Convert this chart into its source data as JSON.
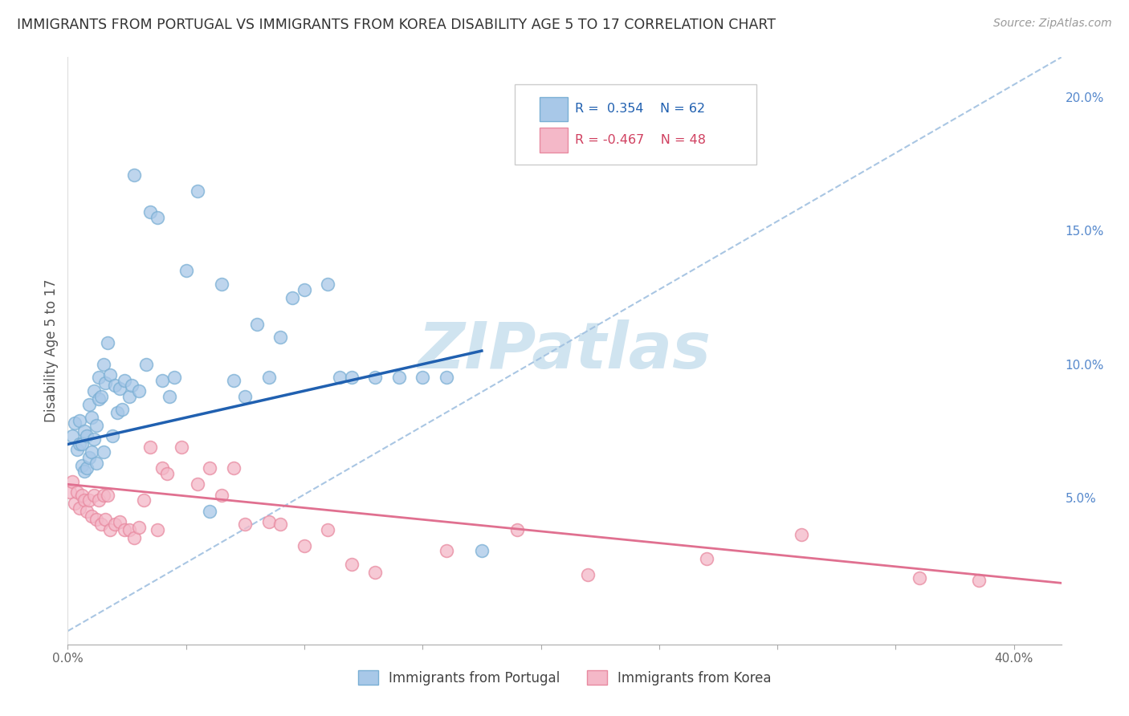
{
  "title": "IMMIGRANTS FROM PORTUGAL VS IMMIGRANTS FROM KOREA DISABILITY AGE 5 TO 17 CORRELATION CHART",
  "source": "Source: ZipAtlas.com",
  "ylabel": "Disability Age 5 to 17",
  "xlim": [
    0.0,
    0.42
  ],
  "ylim": [
    -0.005,
    0.215
  ],
  "portugal_color": "#a8c8e8",
  "portugal_edge_color": "#7aafd4",
  "korea_color": "#f4b8c8",
  "korea_edge_color": "#e88aa0",
  "portugal_line_color": "#2060b0",
  "korea_line_color": "#e07090",
  "dashed_line_color": "#a0c0e0",
  "legend_text_color_portugal": "#2060b0",
  "legend_text_color_korea": "#d04060",
  "watermark_color": "#d0e4f0",
  "portugal_x": [
    0.002,
    0.003,
    0.004,
    0.005,
    0.005,
    0.006,
    0.006,
    0.007,
    0.007,
    0.008,
    0.008,
    0.009,
    0.009,
    0.01,
    0.01,
    0.011,
    0.011,
    0.012,
    0.012,
    0.013,
    0.013,
    0.014,
    0.015,
    0.015,
    0.016,
    0.017,
    0.018,
    0.019,
    0.02,
    0.021,
    0.022,
    0.023,
    0.024,
    0.026,
    0.027,
    0.028,
    0.03,
    0.033,
    0.035,
    0.038,
    0.04,
    0.043,
    0.045,
    0.05,
    0.055,
    0.06,
    0.065,
    0.07,
    0.075,
    0.08,
    0.085,
    0.09,
    0.095,
    0.1,
    0.11,
    0.115,
    0.12,
    0.13,
    0.14,
    0.15,
    0.16,
    0.175
  ],
  "portugal_y": [
    0.073,
    0.078,
    0.068,
    0.07,
    0.079,
    0.062,
    0.07,
    0.06,
    0.075,
    0.061,
    0.073,
    0.065,
    0.085,
    0.067,
    0.08,
    0.072,
    0.09,
    0.063,
    0.077,
    0.095,
    0.087,
    0.088,
    0.067,
    0.1,
    0.093,
    0.108,
    0.096,
    0.073,
    0.092,
    0.082,
    0.091,
    0.083,
    0.094,
    0.088,
    0.092,
    0.171,
    0.09,
    0.1,
    0.157,
    0.155,
    0.094,
    0.088,
    0.095,
    0.135,
    0.165,
    0.045,
    0.13,
    0.094,
    0.088,
    0.115,
    0.095,
    0.11,
    0.125,
    0.128,
    0.13,
    0.095,
    0.095,
    0.095,
    0.095,
    0.095,
    0.095,
    0.03
  ],
  "korea_x": [
    0.001,
    0.002,
    0.003,
    0.004,
    0.005,
    0.006,
    0.007,
    0.008,
    0.009,
    0.01,
    0.011,
    0.012,
    0.013,
    0.014,
    0.015,
    0.016,
    0.017,
    0.018,
    0.02,
    0.022,
    0.024,
    0.026,
    0.028,
    0.03,
    0.032,
    0.035,
    0.038,
    0.04,
    0.042,
    0.048,
    0.055,
    0.06,
    0.065,
    0.07,
    0.075,
    0.085,
    0.09,
    0.1,
    0.11,
    0.12,
    0.13,
    0.16,
    0.19,
    0.22,
    0.27,
    0.31,
    0.36,
    0.385
  ],
  "korea_y": [
    0.052,
    0.056,
    0.048,
    0.052,
    0.046,
    0.051,
    0.049,
    0.045,
    0.049,
    0.043,
    0.051,
    0.042,
    0.049,
    0.04,
    0.051,
    0.042,
    0.051,
    0.038,
    0.04,
    0.041,
    0.038,
    0.038,
    0.035,
    0.039,
    0.049,
    0.069,
    0.038,
    0.061,
    0.059,
    0.069,
    0.055,
    0.061,
    0.051,
    0.061,
    0.04,
    0.041,
    0.04,
    0.032,
    0.038,
    0.025,
    0.022,
    0.03,
    0.038,
    0.021,
    0.027,
    0.036,
    0.02,
    0.019
  ],
  "port_line_x0": 0.0,
  "port_line_y0": 0.07,
  "port_line_x1": 0.175,
  "port_line_y1": 0.105,
  "korea_line_x0": 0.0,
  "korea_line_y0": 0.055,
  "korea_line_x1": 0.42,
  "korea_line_y1": 0.018,
  "dash_line_x0": 0.0,
  "dash_line_y0": 0.0,
  "dash_line_x1": 0.42,
  "dash_line_y1": 0.215
}
